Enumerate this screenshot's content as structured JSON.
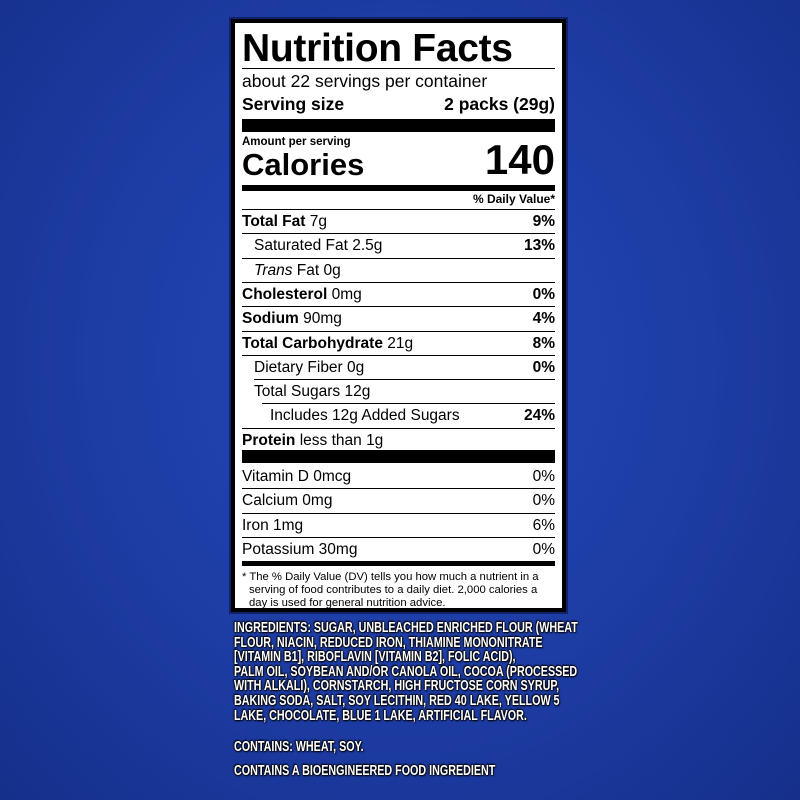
{
  "label": {
    "title": "Nutrition Facts",
    "servings": "about 22 servings per container",
    "serving_size_label": "Serving size",
    "serving_size_value": "2 packs (29g)",
    "amount_per_serving": "Amount per serving",
    "calories_label": "Calories",
    "calories_value": "140",
    "daily_value_header": "% Daily Value*",
    "nutrients": [
      {
        "name": "Total Fat",
        "amount": "7g",
        "dv": "9%"
      },
      {
        "name": "Saturated Fat",
        "amount": "2.5g",
        "dv": "13%"
      },
      {
        "name": "Trans",
        "name_suffix": "Fat",
        "amount": "0g",
        "dv": ""
      },
      {
        "name": "Cholesterol",
        "amount": "0mg",
        "dv": "0%"
      },
      {
        "name": "Sodium",
        "amount": "90mg",
        "dv": "4%"
      },
      {
        "name": "Total Carbohydrate",
        "amount": "21g",
        "dv": "8%"
      },
      {
        "name": "Dietary Fiber",
        "amount": "0g",
        "dv": "0%"
      },
      {
        "name": "Total Sugars",
        "amount": "12g",
        "dv": ""
      },
      {
        "name": "Includes 12g Added Sugars",
        "amount": "",
        "dv": "24%"
      },
      {
        "name": "Protein",
        "amount": "less than 1g",
        "dv": ""
      }
    ],
    "vitamins": [
      {
        "name": "Vitamin D 0mcg",
        "dv": "0%"
      },
      {
        "name": "Calcium 0mg",
        "dv": "0%"
      },
      {
        "name": "Iron 1mg",
        "dv": "6%"
      },
      {
        "name": "Potassium 30mg",
        "dv": "0%"
      }
    ],
    "footnote": [
      "* The % Daily Value (DV) tells you how much a nutrient in a",
      "serving of food contributes to a daily diet. 2,000 calories a",
      "day is used for general nutrition advice."
    ]
  },
  "ingredients_lines": [
    "INGREDIENTS: SUGAR, UNBLEACHED ENRICHED FLOUR (WHEAT",
    "FLOUR, NIACIN, REDUCED IRON, THIAMINE MONONITRATE",
    "[VITAMIN B1], RIBOFLAVIN [VITAMIN B2], FOLIC ACID),",
    "PALM OIL, SOYBEAN AND/OR CANOLA OIL, COCOA (PROCESSED",
    "WITH ALKALI), CORNSTARCH, HIGH FRUCTOSE CORN SYRUP,",
    "BAKING SODA, SALT, SOY LECITHIN, RED 40 LAKE, YELLOW 5",
    "LAKE, CHOCOLATE, BLUE 1 LAKE, ARTIFICIAL FLAVOR."
  ],
  "contains": "CONTAINS: WHEAT, SOY.",
  "bioengineered": "CONTAINS A BIOENGINEERED FOOD INGREDIENT",
  "colors": {
    "background": "#1d3ca4",
    "label_bg": "#ffffff",
    "text": "#000000"
  }
}
